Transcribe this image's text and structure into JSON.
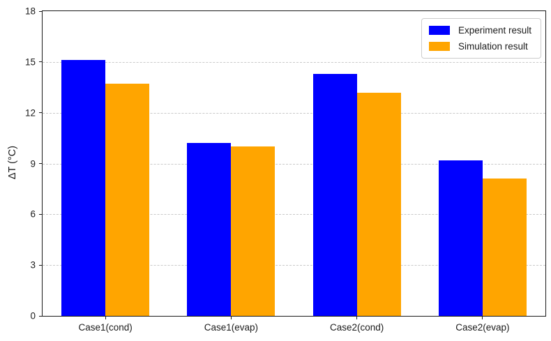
{
  "chart_data": {
    "type": "bar",
    "title": "",
    "xlabel": "",
    "ylabel": "ΔT (°C)",
    "categories": [
      "Case1(cond)",
      "Case1(evap)",
      "Case2(cond)",
      "Case2(evap)"
    ],
    "series": [
      {
        "name": "Experiment result",
        "color": "#0000ff",
        "values": [
          15.1,
          10.2,
          14.3,
          9.2
        ]
      },
      {
        "name": "Simulation result",
        "color": "#ffa500",
        "values": [
          13.7,
          10.0,
          13.2,
          8.1
        ]
      }
    ],
    "ylim": [
      0,
      18
    ],
    "yticks": [
      0,
      3,
      6,
      9,
      12,
      15,
      18
    ],
    "bar_width_fraction": 0.35,
    "grid": "horizontal-dashed",
    "gridline_color": "#c9c9c9",
    "legend_position": "upper-right",
    "spine_color": "#1a1a1a"
  }
}
